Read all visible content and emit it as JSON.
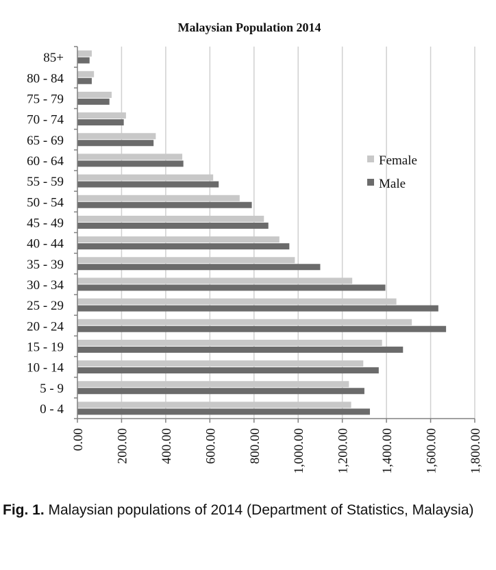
{
  "colors": {
    "female": "#c8c8c8",
    "male": "#6b6b6b",
    "grid": "#d0d0d0",
    "axis": "#808080",
    "text": "#111111"
  },
  "chart_data": {
    "type": "bar",
    "orientation": "horizontal",
    "title": "Malaysian Population 2014",
    "xlabel": "",
    "ylabel": "",
    "categories": [
      "0 - 4",
      "5 - 9",
      "10 - 14",
      "15 - 19",
      "20 - 24",
      "25 - 29",
      "30 - 34",
      "35 - 39",
      "40 - 44",
      "45 - 49",
      "50 - 54",
      "55 - 59",
      "60 - 64",
      "65 - 69",
      "70 - 74",
      "75 - 79",
      "80 - 84",
      "85+"
    ],
    "series": [
      {
        "name": "Female",
        "values": [
          1240,
          1230,
          1295,
          1380,
          1515,
          1445,
          1245,
          985,
          915,
          845,
          735,
          615,
          475,
          355,
          220,
          155,
          75,
          65
        ]
      },
      {
        "name": "Male",
        "values": [
          1325,
          1300,
          1365,
          1475,
          1670,
          1635,
          1395,
          1100,
          960,
          865,
          790,
          640,
          480,
          345,
          210,
          145,
          65,
          55
        ]
      }
    ],
    "xlim": [
      0,
      1800
    ],
    "xticks": [
      "0.00",
      "200.00",
      "400.00",
      "600.00",
      "800.00",
      "1,000.00",
      "1,200.00",
      "1,400.00",
      "1,600.00",
      "1,800.00"
    ],
    "grid": true,
    "legend": "right"
  },
  "caption": {
    "label": "Fig. 1.",
    "text": " Malaysian populations of 2014 (Department of Statistics, Malaysia)"
  }
}
